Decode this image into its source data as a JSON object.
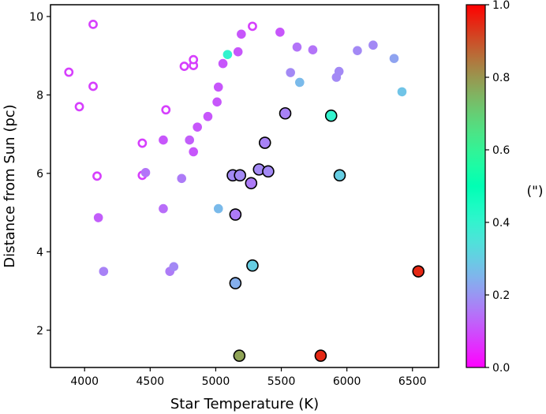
{
  "chart_data": {
    "type": "scatter",
    "xlabel": "Star Temperature (K)",
    "ylabel": "Distance from Sun (pc)",
    "xlim": [
      3740,
      6700
    ],
    "ylim": [
      1.05,
      10.3
    ],
    "xticks": [
      4000,
      4500,
      5000,
      5500,
      6000,
      6500
    ],
    "xtick_labels": [
      "4000",
      "4500",
      "5000",
      "5500",
      "6000",
      "6500"
    ],
    "yticks": [
      2,
      4,
      6,
      8,
      10
    ],
    "ytick_labels": [
      "2",
      "4",
      "6",
      "8",
      "10"
    ],
    "grid": false,
    "colorbar": {
      "label": "(\")",
      "range": [
        0.0,
        1.0
      ],
      "ticks": [
        0.0,
        0.2,
        0.4,
        0.6,
        0.8,
        1.0
      ],
      "tick_labels": [
        "0.0",
        "0.2",
        "0.4",
        "0.6",
        "0.8",
        "1.0"
      ],
      "colormap": "rainbow"
    },
    "marker_styles": {
      "hollow": "white-filled circle with colored ring",
      "filled": "filled circle",
      "outlined": "filled circle with black edge"
    },
    "points": [
      {
        "x": 3880,
        "y": 8.58,
        "v": 0.08,
        "style": "hollow"
      },
      {
        "x": 3960,
        "y": 7.7,
        "v": 0.08,
        "style": "hollow"
      },
      {
        "x": 4065,
        "y": 9.8,
        "v": 0.08,
        "style": "hollow"
      },
      {
        "x": 4065,
        "y": 8.22,
        "v": 0.08,
        "style": "hollow"
      },
      {
        "x": 4095,
        "y": 5.93,
        "v": 0.08,
        "style": "hollow"
      },
      {
        "x": 4440,
        "y": 6.77,
        "v": 0.08,
        "style": "hollow"
      },
      {
        "x": 4440,
        "y": 5.95,
        "v": 0.08,
        "style": "hollow"
      },
      {
        "x": 4620,
        "y": 7.62,
        "v": 0.08,
        "style": "hollow"
      },
      {
        "x": 4760,
        "y": 8.73,
        "v": 0.08,
        "style": "hollow"
      },
      {
        "x": 4830,
        "y": 8.75,
        "v": 0.08,
        "style": "hollow"
      },
      {
        "x": 4830,
        "y": 8.9,
        "v": 0.08,
        "style": "hollow"
      },
      {
        "x": 5280,
        "y": 9.75,
        "v": 0.08,
        "style": "hollow"
      },
      {
        "x": 4105,
        "y": 4.87,
        "v": 0.12,
        "style": "filled"
      },
      {
        "x": 4145,
        "y": 3.5,
        "v": 0.17,
        "style": "filled"
      },
      {
        "x": 4465,
        "y": 6.02,
        "v": 0.15,
        "style": "filled"
      },
      {
        "x": 4600,
        "y": 6.85,
        "v": 0.11,
        "style": "filled"
      },
      {
        "x": 4600,
        "y": 5.1,
        "v": 0.14,
        "style": "filled"
      },
      {
        "x": 4650,
        "y": 3.5,
        "v": 0.16,
        "style": "filled"
      },
      {
        "x": 4680,
        "y": 3.62,
        "v": 0.18,
        "style": "filled"
      },
      {
        "x": 4740,
        "y": 5.87,
        "v": 0.16,
        "style": "filled"
      },
      {
        "x": 4800,
        "y": 6.85,
        "v": 0.12,
        "style": "filled"
      },
      {
        "x": 4830,
        "y": 6.55,
        "v": 0.11,
        "style": "filled"
      },
      {
        "x": 4860,
        "y": 7.18,
        "v": 0.11,
        "style": "filled"
      },
      {
        "x": 4940,
        "y": 7.45,
        "v": 0.11,
        "style": "filled"
      },
      {
        "x": 5010,
        "y": 7.82,
        "v": 0.11,
        "style": "filled"
      },
      {
        "x": 5020,
        "y": 8.2,
        "v": 0.11,
        "style": "filled"
      },
      {
        "x": 5020,
        "y": 5.1,
        "v": 0.26,
        "style": "filled"
      },
      {
        "x": 5055,
        "y": 8.8,
        "v": 0.11,
        "style": "filled"
      },
      {
        "x": 5090,
        "y": 9.03,
        "v": 0.4,
        "style": "filled"
      },
      {
        "x": 5170,
        "y": 9.1,
        "v": 0.11,
        "style": "filled"
      },
      {
        "x": 5195,
        "y": 9.55,
        "v": 0.11,
        "style": "filled"
      },
      {
        "x": 5490,
        "y": 9.6,
        "v": 0.11,
        "style": "filled"
      },
      {
        "x": 5570,
        "y": 8.57,
        "v": 0.18,
        "style": "filled"
      },
      {
        "x": 5620,
        "y": 9.22,
        "v": 0.15,
        "style": "filled"
      },
      {
        "x": 5640,
        "y": 8.32,
        "v": 0.26,
        "style": "filled"
      },
      {
        "x": 5740,
        "y": 9.15,
        "v": 0.15,
        "style": "filled"
      },
      {
        "x": 5920,
        "y": 8.45,
        "v": 0.18,
        "style": "filled"
      },
      {
        "x": 5940,
        "y": 8.6,
        "v": 0.18,
        "style": "filled"
      },
      {
        "x": 6080,
        "y": 9.13,
        "v": 0.18,
        "style": "filled"
      },
      {
        "x": 6200,
        "y": 9.27,
        "v": 0.18,
        "style": "filled"
      },
      {
        "x": 6360,
        "y": 8.93,
        "v": 0.22,
        "style": "filled"
      },
      {
        "x": 6420,
        "y": 8.08,
        "v": 0.28,
        "style": "filled"
      },
      {
        "x": 5130,
        "y": 5.95,
        "v": 0.18,
        "style": "outlined"
      },
      {
        "x": 5150,
        "y": 4.95,
        "v": 0.16,
        "style": "outlined"
      },
      {
        "x": 5185,
        "y": 5.95,
        "v": 0.18,
        "style": "outlined"
      },
      {
        "x": 5150,
        "y": 3.2,
        "v": 0.24,
        "style": "outlined"
      },
      {
        "x": 5270,
        "y": 5.75,
        "v": 0.16,
        "style": "outlined"
      },
      {
        "x": 5280,
        "y": 3.65,
        "v": 0.3,
        "style": "outlined"
      },
      {
        "x": 5330,
        "y": 6.1,
        "v": 0.18,
        "style": "outlined"
      },
      {
        "x": 5375,
        "y": 6.78,
        "v": 0.17,
        "style": "outlined"
      },
      {
        "x": 5400,
        "y": 6.05,
        "v": 0.18,
        "style": "outlined"
      },
      {
        "x": 5530,
        "y": 7.53,
        "v": 0.17,
        "style": "outlined"
      },
      {
        "x": 5880,
        "y": 7.47,
        "v": 0.4,
        "style": "outlined"
      },
      {
        "x": 5945,
        "y": 5.95,
        "v": 0.3,
        "style": "outlined"
      },
      {
        "x": 5180,
        "y": 1.35,
        "v": 0.78,
        "style": "outlined"
      },
      {
        "x": 5800,
        "y": 1.35,
        "v": 0.95,
        "style": "outlined"
      },
      {
        "x": 6545,
        "y": 3.5,
        "v": 0.95,
        "style": "outlined"
      }
    ]
  }
}
